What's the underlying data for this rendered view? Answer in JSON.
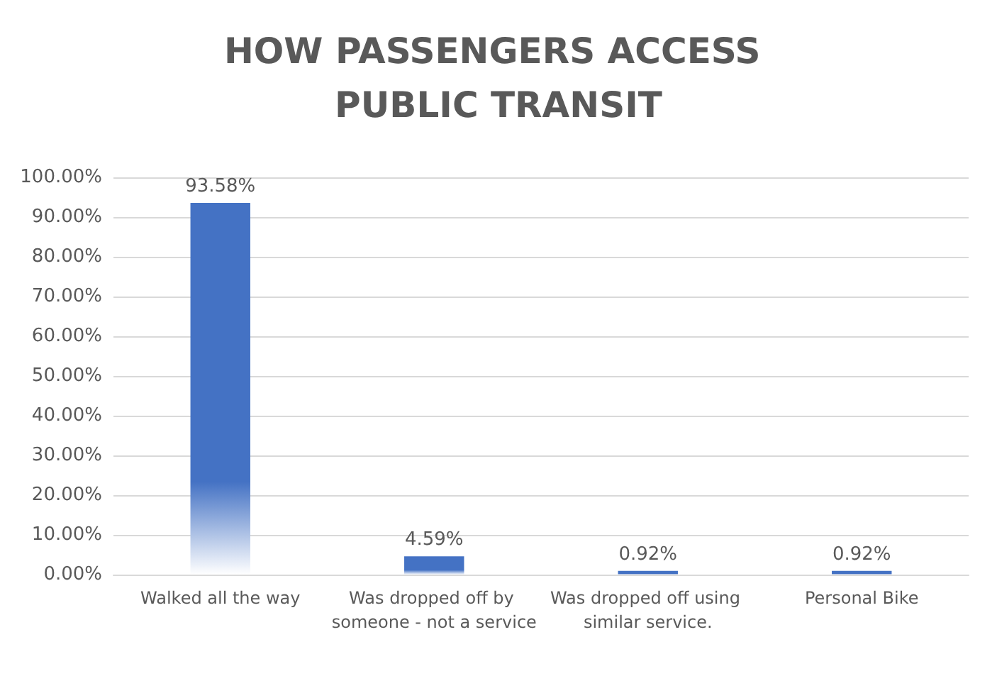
{
  "chart_data": {
    "type": "bar",
    "title": "HOW PASSENGERS ACCESS PUBLIC TRANSIT",
    "categories": [
      "Walked all the way",
      "Was dropped off by someone - not a service",
      "Was dropped off using similar service.",
      "Personal Bike"
    ],
    "values": [
      93.58,
      4.59,
      0.92,
      0.92
    ],
    "value_labels": [
      "93.58%",
      "4.59%",
      "0.92%",
      "0.92%"
    ],
    "color": "#4472c4",
    "ylim": [
      0,
      100
    ],
    "yticks": [
      {
        "value": 0,
        "label": "0.00%"
      },
      {
        "value": 10,
        "label": "10.00%"
      },
      {
        "value": 20,
        "label": "20.00%"
      },
      {
        "value": 30,
        "label": "30.00%"
      },
      {
        "value": 40,
        "label": "40.00%"
      },
      {
        "value": 50,
        "label": "50.00%"
      },
      {
        "value": 60,
        "label": "60.00%"
      },
      {
        "value": 70,
        "label": "70.00%"
      },
      {
        "value": 80,
        "label": "80.00%"
      },
      {
        "value": 90,
        "label": "90.00%"
      },
      {
        "value": 100,
        "label": "100.00%"
      }
    ],
    "grid": "y"
  }
}
